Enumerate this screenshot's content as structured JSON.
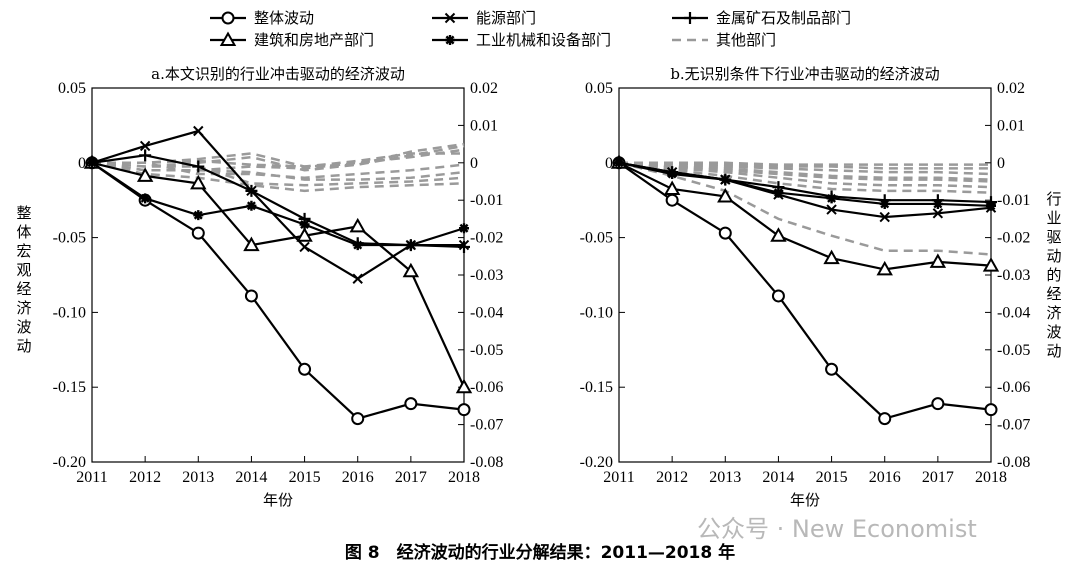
{
  "legend": {
    "items": [
      {
        "label": "整体波动",
        "marker": "circle",
        "style": "solid"
      },
      {
        "label": "能源部门",
        "marker": "x",
        "style": "solid"
      },
      {
        "label": "金属矿石及制品部门",
        "marker": "plus",
        "style": "solid"
      },
      {
        "label": "建筑和房地产部门",
        "marker": "triangle",
        "style": "solid"
      },
      {
        "label": "工业机械和设备部门",
        "marker": "asterisk",
        "style": "solid"
      },
      {
        "label": "其他部门",
        "marker": "none",
        "style": "dashed"
      }
    ]
  },
  "xlabel": "年份",
  "left_ylabel": "整体宏观经济波动",
  "right_ylabel": "行业驱动的经济波动",
  "caption": "图 8　经济波动的行业分解结果：2011—2018 年",
  "watermark": "公众号 · New Economist",
  "chart_data": [
    {
      "type": "line",
      "title": "a.本文识别的行业冲击驱动的经济波动",
      "x": [
        2011,
        2012,
        2013,
        2014,
        2015,
        2016,
        2017,
        2018
      ],
      "left_ylim": [
        -0.2,
        0.05
      ],
      "right_ylim": [
        -0.08,
        0.02
      ],
      "left_ticks": [
        "0.05",
        "0",
        "-0.05",
        "-0.10",
        "-0.15",
        "-0.20"
      ],
      "right_ticks": [
        "0.02",
        "0.01",
        "0",
        "-0.01",
        "-0.02",
        "-0.03",
        "-0.04",
        "-0.05",
        "-0.06",
        "-0.07",
        "-0.08"
      ],
      "x_ticks": [
        "2011",
        "2012",
        "2013",
        "2014",
        "2015",
        "2016",
        "2017",
        "2018"
      ],
      "series": [
        {
          "name": "整体波动",
          "axis": "left",
          "marker": "circle",
          "values": [
            0,
            -0.025,
            -0.047,
            -0.089,
            -0.138,
            -0.171,
            -0.161,
            -0.165
          ]
        },
        {
          "name": "能源部门",
          "axis": "right",
          "marker": "x",
          "values": [
            0,
            0.0045,
            0.0085,
            -0.0075,
            -0.0225,
            -0.031,
            -0.022,
            -0.022
          ]
        },
        {
          "name": "金属矿石及制品部门",
          "axis": "right",
          "marker": "plus",
          "values": [
            0,
            0.002,
            -0.001,
            -0.0075,
            -0.015,
            -0.0215,
            -0.022,
            -0.0225
          ]
        },
        {
          "name": "建筑和房地产部门",
          "axis": "right",
          "marker": "triangle",
          "values": [
            0,
            -0.0035,
            -0.0055,
            -0.022,
            -0.0195,
            -0.017,
            -0.029,
            -0.06
          ]
        },
        {
          "name": "工业机械和设备部门",
          "axis": "right",
          "marker": "asterisk",
          "values": [
            0,
            -0.0095,
            -0.014,
            -0.0115,
            -0.0165,
            -0.022,
            -0.022,
            -0.0175
          ]
        }
      ],
      "other_series": [
        [
          0,
          0.0,
          0.001,
          0.0025,
          -0.001,
          -0.0005,
          0.002,
          0.0045
        ],
        [
          0,
          -0.001,
          0.0,
          0.0015,
          -0.002,
          -0.0005,
          0.003,
          0.005
        ],
        [
          0,
          -0.002,
          -0.002,
          -0.001,
          -0.0015,
          0.0,
          0.0015,
          0.0035
        ],
        [
          0,
          0.0,
          -0.003,
          -0.003,
          -0.004,
          -0.003,
          -0.002,
          -0.0005
        ],
        [
          0,
          -0.002,
          -0.002,
          -0.0025,
          -0.0045,
          -0.0045,
          -0.004,
          -0.0025
        ],
        [
          0,
          -0.001,
          -0.001,
          -0.0055,
          -0.006,
          -0.0055,
          -0.005,
          -0.004
        ],
        [
          0,
          -0.003,
          -0.004,
          -0.006,
          -0.0075,
          -0.0065,
          -0.006,
          -0.0055
        ],
        [
          0,
          0.0,
          0.0005,
          -0.0005,
          -0.001,
          0.0005,
          0.0025,
          0.0025
        ]
      ]
    },
    {
      "type": "line",
      "title": "b.无识别条件下行业冲击驱动的经济波动",
      "x": [
        2011,
        2012,
        2013,
        2014,
        2015,
        2016,
        2017,
        2018
      ],
      "left_ylim": [
        -0.2,
        0.05
      ],
      "right_ylim": [
        -0.08,
        0.02
      ],
      "left_ticks": [
        "0.05",
        "0",
        "-0.05",
        "-0.10",
        "-0.15",
        "-0.20"
      ],
      "right_ticks": [
        "0.02",
        "0.01",
        "0",
        "-0.01",
        "-0.02",
        "-0.03",
        "-0.04",
        "-0.05",
        "-0.06",
        "-0.07",
        "-0.08"
      ],
      "x_ticks": [
        "2011",
        "2012",
        "2013",
        "2014",
        "2015",
        "2016",
        "2017",
        "2018"
      ],
      "series": [
        {
          "name": "整体波动",
          "axis": "left",
          "marker": "circle",
          "values": [
            0,
            -0.025,
            -0.047,
            -0.089,
            -0.138,
            -0.171,
            -0.161,
            -0.165
          ]
        },
        {
          "name": "能源部门",
          "axis": "right",
          "marker": "x",
          "values": [
            0,
            -0.0025,
            -0.0045,
            -0.0085,
            -0.0125,
            -0.0145,
            -0.0135,
            -0.012
          ]
        },
        {
          "name": "金属矿石及制品部门",
          "axis": "right",
          "marker": "plus",
          "values": [
            0,
            -0.0025,
            -0.0045,
            -0.0065,
            -0.009,
            -0.01,
            -0.01,
            -0.0105
          ]
        },
        {
          "name": "建筑和房地产部门",
          "axis": "right",
          "marker": "triangle",
          "values": [
            0,
            -0.007,
            -0.009,
            -0.0195,
            -0.0255,
            -0.0285,
            -0.0265,
            -0.0275
          ]
        },
        {
          "name": "工业机械和设备部门",
          "axis": "right",
          "marker": "asterisk",
          "values": [
            0,
            -0.003,
            -0.0045,
            -0.008,
            -0.0095,
            -0.011,
            -0.011,
            -0.0115
          ]
        }
      ],
      "other_series": [
        [
          0,
          -0.0035,
          -0.0075,
          -0.015,
          -0.0195,
          -0.0235,
          -0.0235,
          -0.0245
        ],
        [
          0,
          -0.002,
          -0.0035,
          -0.0055,
          -0.007,
          -0.0075,
          -0.0075,
          -0.008
        ],
        [
          0,
          -0.0015,
          -0.0025,
          -0.004,
          -0.0055,
          -0.006,
          -0.006,
          -0.0065
        ],
        [
          0,
          -0.001,
          -0.0015,
          -0.0025,
          -0.0035,
          -0.004,
          -0.004,
          -0.0045
        ],
        [
          0,
          -0.0005,
          -0.001,
          -0.0015,
          -0.002,
          -0.0025,
          -0.0025,
          -0.003
        ],
        [
          0,
          0.0,
          -0.0005,
          -0.001,
          -0.001,
          -0.0015,
          -0.0015,
          -0.0015
        ],
        [
          0,
          0.0,
          0.0,
          -0.0005,
          -0.0005,
          -0.0005,
          -0.0005,
          -0.0005
        ],
        [
          0,
          -0.001,
          -0.002,
          -0.003,
          -0.004,
          -0.0045,
          -0.0045,
          -0.005
        ]
      ]
    }
  ]
}
